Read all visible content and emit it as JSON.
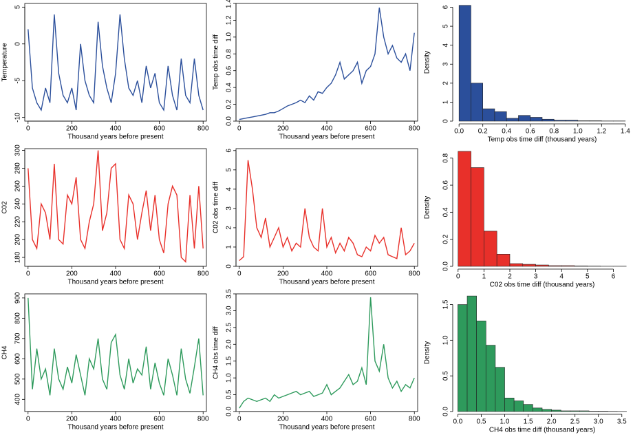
{
  "chart_data": [
    {
      "type": "line",
      "ylabel": "Temperature",
      "xlabel": "Thousand years before present",
      "color": "#2b4f9b",
      "x": [
        0,
        20,
        40,
        60,
        80,
        100,
        120,
        140,
        160,
        180,
        200,
        220,
        240,
        260,
        280,
        300,
        320,
        340,
        360,
        380,
        400,
        420,
        440,
        460,
        480,
        500,
        520,
        540,
        560,
        580,
        600,
        620,
        640,
        660,
        680,
        700,
        720,
        740,
        760,
        780,
        800
      ],
      "values": [
        2,
        -6,
        -8,
        -9,
        -6,
        -8,
        4,
        -4,
        -7,
        -8,
        -6,
        -9,
        0,
        -5,
        -7,
        -8,
        3,
        -3,
        -6,
        -8,
        -4,
        4,
        -2,
        -6,
        -7,
        -5,
        -8,
        -3,
        -6,
        -4,
        -8,
        -9,
        -3,
        -7,
        -9,
        -2,
        -7,
        -8,
        -2,
        -7,
        -9
      ],
      "xlim": [
        -15,
        815
      ],
      "xticks": [
        0,
        200,
        400,
        600,
        800
      ],
      "ylim": [
        -10.5,
        5.5
      ],
      "yticks": [
        -10,
        -5,
        0,
        5
      ]
    },
    {
      "type": "line",
      "ylabel": "Temp obs time diff",
      "xlabel": "Thousand years before present",
      "color": "#2b4f9b",
      "x": [
        0,
        20,
        40,
        60,
        80,
        100,
        120,
        140,
        160,
        180,
        200,
        220,
        240,
        260,
        280,
        300,
        320,
        340,
        360,
        380,
        400,
        420,
        440,
        460,
        480,
        500,
        520,
        540,
        560,
        580,
        600,
        620,
        640,
        660,
        680,
        700,
        720,
        740,
        760,
        780,
        800
      ],
      "values": [
        0.02,
        0.03,
        0.04,
        0.05,
        0.06,
        0.07,
        0.08,
        0.1,
        0.1,
        0.12,
        0.15,
        0.18,
        0.2,
        0.22,
        0.25,
        0.22,
        0.3,
        0.25,
        0.35,
        0.33,
        0.4,
        0.45,
        0.55,
        0.7,
        0.5,
        0.55,
        0.6,
        0.7,
        0.45,
        0.6,
        0.65,
        0.8,
        1.35,
        1.0,
        0.8,
        0.9,
        0.75,
        0.7,
        0.8,
        0.6,
        1.05
      ],
      "xlim": [
        -15,
        815
      ],
      "xticks": [
        0,
        200,
        400,
        600,
        800
      ],
      "ylim": [
        0,
        1.4
      ],
      "yticks": [
        {
          "value": 0,
          "label": "0.0"
        },
        {
          "value": 0.2,
          "label": "0.2"
        },
        {
          "value": 0.4,
          "label": "0.4"
        },
        {
          "value": 0.6,
          "label": "0.6"
        },
        {
          "value": 0.8,
          "label": "0.8"
        },
        {
          "value": 1,
          "label": "1.0"
        },
        {
          "value": 1.2,
          "label": "1.2"
        },
        {
          "value": 1.4,
          "label": "1.4"
        }
      ]
    },
    {
      "type": "histogram",
      "ylabel": "Density",
      "xlabel": "Temp obs time diff (thousand years)",
      "color": "#2b4f9b",
      "bins": [
        0,
        0.1,
        0.2,
        0.3,
        0.4,
        0.5,
        0.6,
        0.7,
        0.8,
        0.9,
        1.0,
        1.1,
        1.2,
        1.3,
        1.4
      ],
      "values": [
        6.1,
        2.0,
        0.65,
        0.5,
        0.15,
        0.3,
        0.2,
        0.1,
        0.05,
        0.05,
        0.02,
        0.02,
        0.01,
        0.01
      ],
      "xlim": [
        -0.03,
        1.43
      ],
      "ylim": [
        0,
        6.2
      ],
      "xticks": [
        {
          "value": 0,
          "label": "0.0"
        },
        {
          "value": 0.2,
          "label": "0.2"
        },
        {
          "value": 0.4,
          "label": "0.4"
        },
        {
          "value": 0.6,
          "label": "0.6"
        },
        {
          "value": 0.8,
          "label": "0.8"
        },
        {
          "value": 1,
          "label": "1.0"
        },
        {
          "value": 1.2,
          "label": "1.2"
        },
        {
          "value": 1.4,
          "label": "1.4"
        }
      ],
      "yticks": [
        0,
        1,
        2,
        3,
        4,
        5,
        6
      ]
    },
    {
      "type": "line",
      "ylabel": "C02",
      "xlabel": "Thousand years before present",
      "color": "#e8302a",
      "x": [
        0,
        20,
        40,
        60,
        80,
        100,
        120,
        140,
        160,
        180,
        200,
        220,
        240,
        260,
        280,
        300,
        320,
        340,
        360,
        380,
        400,
        420,
        440,
        460,
        480,
        500,
        520,
        540,
        560,
        580,
        600,
        620,
        640,
        660,
        680,
        700,
        720,
        740,
        760,
        780,
        800
      ],
      "values": [
        280,
        200,
        190,
        240,
        230,
        200,
        285,
        200,
        195,
        250,
        240,
        270,
        200,
        190,
        220,
        240,
        300,
        210,
        230,
        280,
        285,
        200,
        190,
        250,
        240,
        200,
        230,
        255,
        210,
        250,
        200,
        185,
        240,
        260,
        250,
        180,
        175,
        250,
        190,
        260,
        190
      ],
      "xlim": [
        -15,
        815
      ],
      "xticks": [
        0,
        200,
        400,
        600,
        800
      ],
      "ylim": [
        170,
        302
      ],
      "yticks": [
        180,
        200,
        220,
        240,
        260,
        280,
        300
      ]
    },
    {
      "type": "line",
      "ylabel": "C02 obs time diff",
      "xlabel": "Thousand years before present",
      "color": "#e8302a",
      "x": [
        0,
        20,
        40,
        60,
        80,
        100,
        120,
        140,
        160,
        180,
        200,
        220,
        240,
        260,
        280,
        300,
        320,
        340,
        360,
        380,
        400,
        420,
        440,
        460,
        480,
        500,
        520,
        540,
        560,
        580,
        600,
        620,
        640,
        660,
        680,
        700,
        720,
        740,
        760,
        780,
        800
      ],
      "values": [
        0.3,
        0.5,
        5.5,
        4,
        2,
        1.5,
        2.5,
        1,
        1.5,
        2,
        1,
        1.5,
        0.8,
        1.2,
        1,
        3,
        1.5,
        1,
        0.8,
        3,
        1,
        1.5,
        0.7,
        1.2,
        0.8,
        1.5,
        1.2,
        0.6,
        0.5,
        1,
        0.8,
        1.6,
        1.2,
        1.5,
        0.6,
        0.5,
        0.4,
        2,
        0.6,
        0.8,
        1.2
      ],
      "xlim": [
        -15,
        815
      ],
      "xticks": [
        0,
        200,
        400,
        600,
        800
      ],
      "ylim": [
        0,
        6.1
      ],
      "yticks": [
        0,
        1,
        2,
        3,
        4,
        5,
        6
      ]
    },
    {
      "type": "histogram",
      "ylabel": "Density",
      "xlabel": "C02 obs time diff (thousand years)",
      "color": "#e8302a",
      "bins": [
        0,
        0.5,
        1,
        1.5,
        2,
        2.5,
        3,
        3.5,
        4,
        4.5,
        5,
        5.5,
        6,
        6.5
      ],
      "values": [
        0.85,
        0.73,
        0.26,
        0.09,
        0.02,
        0.015,
        0.01,
        0.005,
        0.005,
        0.003,
        0.002,
        0.001,
        0.001
      ],
      "xlim": [
        -0.1,
        6.6
      ],
      "ylim": [
        0,
        0.87
      ],
      "xticks": [
        0,
        1,
        2,
        3,
        4,
        5,
        6
      ],
      "yticks": [
        {
          "value": 0,
          "label": "0.0"
        },
        {
          "value": 0.2,
          "label": "0.2"
        },
        {
          "value": 0.4,
          "label": "0.4"
        },
        {
          "value": 0.6,
          "label": "0.6"
        },
        {
          "value": 0.8,
          "label": "0.8"
        }
      ]
    },
    {
      "type": "line",
      "ylabel": "CH4",
      "xlabel": "Thousand years before present",
      "color": "#2e9a5c",
      "x": [
        0,
        20,
        40,
        60,
        80,
        100,
        120,
        140,
        160,
        180,
        200,
        220,
        240,
        260,
        280,
        300,
        320,
        340,
        360,
        380,
        400,
        420,
        440,
        460,
        480,
        500,
        520,
        540,
        560,
        580,
        600,
        620,
        640,
        660,
        680,
        700,
        720,
        740,
        760,
        780,
        800
      ],
      "values": [
        900,
        450,
        650,
        500,
        550,
        420,
        650,
        500,
        450,
        560,
        480,
        620,
        520,
        420,
        600,
        550,
        700,
        500,
        450,
        680,
        720,
        520,
        450,
        600,
        480,
        550,
        520,
        660,
        450,
        580,
        480,
        420,
        600,
        520,
        420,
        650,
        500,
        430,
        560,
        700,
        420
      ],
      "xlim": [
        -15,
        815
      ],
      "xticks": [
        0,
        200,
        400,
        600,
        800
      ],
      "ylim": [
        340,
        920
      ],
      "yticks": [
        400,
        500,
        600,
        700,
        800,
        900
      ]
    },
    {
      "type": "line",
      "ylabel": "CH4 obs time diff",
      "xlabel": "Thousand years before present",
      "color": "#2e9a5c",
      "x": [
        0,
        20,
        40,
        60,
        80,
        100,
        120,
        140,
        160,
        180,
        200,
        220,
        240,
        260,
        280,
        300,
        320,
        340,
        360,
        380,
        400,
        420,
        440,
        460,
        480,
        500,
        520,
        540,
        560,
        580,
        600,
        620,
        640,
        660,
        680,
        700,
        720,
        740,
        760,
        780,
        800
      ],
      "values": [
        0.1,
        0.3,
        0.4,
        0.35,
        0.3,
        0.35,
        0.4,
        0.3,
        0.5,
        0.4,
        0.45,
        0.5,
        0.55,
        0.6,
        0.5,
        0.55,
        0.6,
        0.45,
        0.5,
        0.55,
        0.8,
        0.5,
        0.6,
        0.7,
        0.9,
        1.1,
        0.8,
        0.9,
        1.3,
        0.8,
        3.4,
        1.5,
        1.2,
        2.0,
        1.0,
        0.7,
        0.9,
        0.6,
        0.8,
        0.7,
        1.0
      ],
      "xlim": [
        -15,
        815
      ],
      "xticks": [
        0,
        200,
        400,
        600,
        800
      ],
      "ylim": [
        0,
        3.5
      ],
      "yticks": [
        {
          "value": 0,
          "label": "0.0"
        },
        {
          "value": 0.5,
          "label": "0.5"
        },
        {
          "value": 1,
          "label": "1.0"
        },
        {
          "value": 1.5,
          "label": "1.5"
        },
        {
          "value": 2,
          "label": "2.0"
        },
        {
          "value": 2.5,
          "label": "2.5"
        },
        {
          "value": 3,
          "label": "3.0"
        },
        {
          "value": 3.5,
          "label": "3.5"
        }
      ]
    },
    {
      "type": "histogram",
      "ylabel": "Density",
      "xlabel": "CH4 obs time diff (thousand years)",
      "color": "#2e9a5c",
      "bins": [
        0,
        0.2,
        0.4,
        0.6,
        0.8,
        1.0,
        1.2,
        1.4,
        1.6,
        1.8,
        2.0,
        2.2,
        2.4,
        2.6,
        2.8,
        3.0,
        3.2,
        3.4,
        3.6
      ],
      "values": [
        1.5,
        1.62,
        1.27,
        0.93,
        0.62,
        0.19,
        0.15,
        0.1,
        0.05,
        0.03,
        0.02,
        0.01,
        0.01,
        0.01,
        0.005,
        0.005,
        0.003,
        0.002
      ],
      "xlim": [
        -0.05,
        3.65
      ],
      "ylim": [
        0,
        1.65
      ],
      "xticks": [
        {
          "value": 0,
          "label": "0.0"
        },
        {
          "value": 0.5,
          "label": "0.5"
        },
        {
          "value": 1,
          "label": "1.0"
        },
        {
          "value": 1.5,
          "label": "1.5"
        },
        {
          "value": 2,
          "label": "2.0"
        },
        {
          "value": 2.5,
          "label": "2.5"
        },
        {
          "value": 3,
          "label": "3.0"
        },
        {
          "value": 3.5,
          "label": "3.5"
        }
      ],
      "yticks": [
        {
          "value": 0,
          "label": "0.0"
        },
        {
          "value": 0.5,
          "label": "0.5"
        },
        {
          "value": 1,
          "label": "1.0"
        },
        {
          "value": 1.5,
          "label": "1.5"
        }
      ]
    }
  ]
}
